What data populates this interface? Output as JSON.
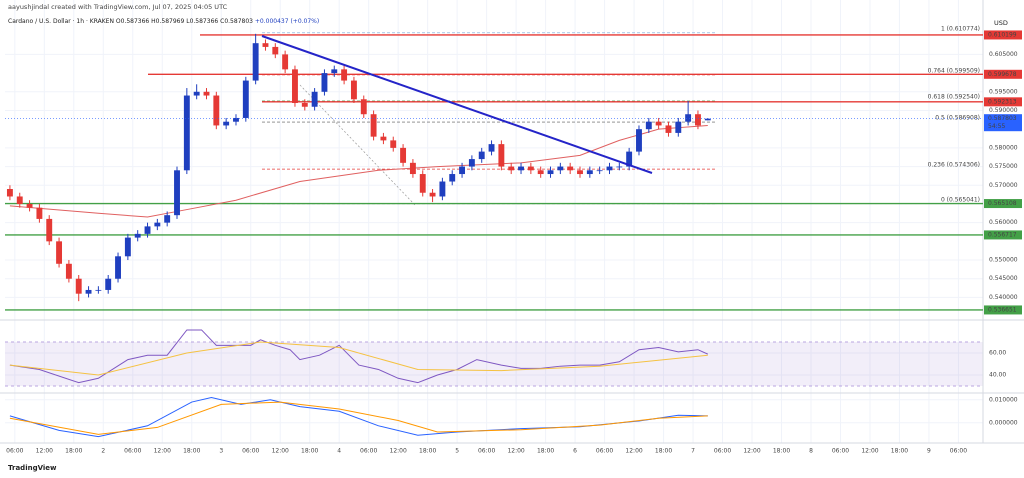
{
  "header": {
    "credit": "aayushjindal created with TradingView.com, Jul 07, 2025 04:05 UTC",
    "symbol": "Cardano / U.S. Dollar · 1h · KRAKEN",
    "open": "O0.587366",
    "high": "H0.587969",
    "low": "L0.587366",
    "close": "C0.587803",
    "change": "+0.000437 (+0.07%)",
    "currency": "USD",
    "countdown": "54:55",
    "logo": "TradingView"
  },
  "chart_data": [
    {
      "type": "candlestick",
      "up_color": "#1f3fbf",
      "down_color": "#e53935",
      "xlim": [
        4,
        203
      ],
      "ylim": [
        0.5353,
        0.6142
      ],
      "x": [
        5,
        7,
        9,
        11,
        13,
        15,
        17,
        19,
        21,
        23,
        25,
        27,
        29,
        31,
        33,
        35,
        37,
        39,
        41,
        43,
        45,
        47,
        49,
        51,
        53,
        55,
        57,
        59,
        61,
        63,
        65,
        67,
        69,
        71,
        73,
        75,
        77,
        79,
        81,
        83,
        85,
        87,
        89,
        91,
        93,
        95,
        97,
        99,
        101,
        103,
        105,
        107,
        109,
        111,
        113,
        115,
        117,
        119,
        121,
        123,
        125,
        127,
        129,
        131,
        133,
        135,
        137,
        139,
        141,
        143,
        145,
        147
      ],
      "open": [
        0.569,
        0.567,
        0.565,
        0.564,
        0.561,
        0.555,
        0.549,
        0.545,
        0.541,
        0.542,
        0.542,
        0.545,
        0.551,
        0.556,
        0.557,
        0.559,
        0.56,
        0.562,
        0.574,
        0.594,
        0.595,
        0.594,
        0.586,
        0.587,
        0.588,
        0.598,
        0.608,
        0.607,
        0.605,
        0.601,
        0.592,
        0.591,
        0.595,
        0.6,
        0.601,
        0.598,
        0.593,
        0.589,
        0.583,
        0.582,
        0.58,
        0.576,
        0.573,
        0.568,
        0.567,
        0.571,
        0.573,
        0.575,
        0.577,
        0.579,
        0.581,
        0.575,
        0.574,
        0.575,
        0.574,
        0.573,
        0.574,
        0.575,
        0.574,
        0.573,
        0.574,
        0.574,
        0.575,
        0.575,
        0.579,
        0.585,
        0.587,
        0.586,
        0.584,
        0.587,
        0.589,
        0.587366
      ],
      "high": [
        0.57,
        0.568,
        0.566,
        0.565,
        0.562,
        0.556,
        0.55,
        0.546,
        0.543,
        0.543,
        0.546,
        0.552,
        0.557,
        0.558,
        0.56,
        0.561,
        0.563,
        0.575,
        0.596,
        0.597,
        0.596,
        0.595,
        0.588,
        0.589,
        0.599,
        0.6105,
        0.609,
        0.608,
        0.606,
        0.602,
        0.593,
        0.596,
        0.601,
        0.602,
        0.602,
        0.599,
        0.594,
        0.59,
        0.584,
        0.583,
        0.581,
        0.577,
        0.574,
        0.569,
        0.572,
        0.574,
        0.576,
        0.578,
        0.58,
        0.582,
        0.582,
        0.576,
        0.576,
        0.576,
        0.575,
        0.575,
        0.576,
        0.576,
        0.575,
        0.575,
        0.575,
        0.576,
        0.576,
        0.58,
        0.586,
        0.588,
        0.588,
        0.587,
        0.588,
        0.5925,
        0.59,
        0.587969
      ],
      "low": [
        0.566,
        0.564,
        0.563,
        0.56,
        0.554,
        0.548,
        0.544,
        0.539,
        0.54,
        0.541,
        0.541,
        0.544,
        0.55,
        0.555,
        0.556,
        0.558,
        0.559,
        0.561,
        0.573,
        0.593,
        0.593,
        0.585,
        0.585,
        0.586,
        0.587,
        0.597,
        0.606,
        0.604,
        0.6,
        0.591,
        0.59,
        0.59,
        0.594,
        0.599,
        0.597,
        0.592,
        0.588,
        0.582,
        0.581,
        0.579,
        0.575,
        0.572,
        0.567,
        0.5655,
        0.566,
        0.57,
        0.572,
        0.574,
        0.576,
        0.578,
        0.574,
        0.573,
        0.573,
        0.573,
        0.572,
        0.572,
        0.573,
        0.573,
        0.572,
        0.572,
        0.573,
        0.573,
        0.574,
        0.574,
        0.578,
        0.584,
        0.585,
        0.583,
        0.583,
        0.586,
        0.585,
        0.587366
      ],
      "close": [
        0.567,
        0.565,
        0.564,
        0.561,
        0.555,
        0.549,
        0.545,
        0.541,
        0.542,
        0.542,
        0.545,
        0.551,
        0.556,
        0.557,
        0.559,
        0.56,
        0.562,
        0.574,
        0.594,
        0.595,
        0.594,
        0.586,
        0.587,
        0.588,
        0.598,
        0.608,
        0.607,
        0.605,
        0.601,
        0.592,
        0.591,
        0.595,
        0.6,
        0.601,
        0.598,
        0.593,
        0.589,
        0.583,
        0.582,
        0.58,
        0.576,
        0.573,
        0.568,
        0.567,
        0.571,
        0.573,
        0.575,
        0.577,
        0.579,
        0.581,
        0.575,
        0.574,
        0.575,
        0.574,
        0.573,
        0.574,
        0.575,
        0.574,
        0.573,
        0.574,
        0.574,
        0.575,
        0.575,
        0.579,
        0.585,
        0.587,
        0.586,
        0.584,
        0.587,
        0.589,
        0.586,
        0.587803
      ],
      "ma": {
        "color": "#e06060",
        "x": [
          5,
          23,
          33,
          39,
          51,
          64,
          80,
          92,
          109,
          121,
          129,
          137,
          147
        ],
        "values": [
          0.5645,
          0.5625,
          0.5615,
          0.563,
          0.566,
          0.571,
          0.574,
          0.575,
          0.576,
          0.578,
          0.582,
          0.585,
          0.586
        ]
      },
      "yticks": [
        {
          "value": 0.54,
          "label": "0.540000"
        },
        {
          "value": 0.545,
          "label": "0.545000"
        },
        {
          "value": 0.55,
          "label": "0.550000"
        },
        {
          "value": 0.56,
          "label": "0.560000"
        },
        {
          "value": 0.57,
          "label": "0.570000"
        },
        {
          "value": 0.575,
          "label": "0.575000"
        },
        {
          "value": 0.58,
          "label": "0.580000"
        },
        {
          "value": 0.59,
          "label": "0.590000"
        },
        {
          "value": 0.595,
          "label": "0.595000"
        },
        {
          "value": 0.605,
          "label": "0.605000"
        }
      ],
      "xticks": [
        {
          "value": 6,
          "label": "06:00"
        },
        {
          "value": 12,
          "label": "12:00"
        },
        {
          "value": 18,
          "label": "18:00"
        },
        {
          "value": 24,
          "label": "2"
        },
        {
          "value": 30,
          "label": "06:00"
        },
        {
          "value": 36,
          "label": "12:00"
        },
        {
          "value": 42,
          "label": "18:00"
        },
        {
          "value": 48,
          "label": "3"
        },
        {
          "value": 54,
          "label": "06:00"
        },
        {
          "value": 60,
          "label": "12:00"
        },
        {
          "value": 66,
          "label": "18:00"
        },
        {
          "value": 72,
          "label": "4"
        },
        {
          "value": 78,
          "label": "06:00"
        },
        {
          "value": 84,
          "label": "12:00"
        },
        {
          "value": 90,
          "label": "18:00"
        },
        {
          "value": 96,
          "label": "5"
        },
        {
          "value": 102,
          "label": "06:00"
        },
        {
          "value": 108,
          "label": "12:00"
        },
        {
          "value": 114,
          "label": "18:00"
        },
        {
          "value": 120,
          "label": "6"
        },
        {
          "value": 126,
          "label": "06:00"
        },
        {
          "value": 132,
          "label": "12:00"
        },
        {
          "value": 138,
          "label": "18:00"
        },
        {
          "value": 144,
          "label": "7"
        },
        {
          "value": 150,
          "label": "06:00"
        },
        {
          "value": 156,
          "label": "12:00"
        },
        {
          "value": 162,
          "label": "18:00"
        },
        {
          "value": 168,
          "label": "8"
        },
        {
          "value": 174,
          "label": "06:00"
        },
        {
          "value": 180,
          "label": "12:00"
        },
        {
          "value": 186,
          "label": "18:00"
        },
        {
          "value": 192,
          "label": "9"
        },
        {
          "value": 198,
          "label": "06:00"
        }
      ],
      "levels": [
        {
          "value": 0.610199,
          "color": "#e53935"
        },
        {
          "value": 0.599678,
          "color": "#e53935"
        },
        {
          "value": 0.592313,
          "color": "#e53935"
        },
        {
          "value": 0.565108,
          "color": "#43a047"
        },
        {
          "value": 0.556717,
          "color": "#43a047"
        },
        {
          "value": 0.536651,
          "color": "#43a047"
        }
      ],
      "last_price": {
        "value": 0.587803,
        "color": "#2962ff"
      },
      "fib": [
        {
          "price": 0.610774,
          "label": "1 (0.610774)",
          "color": "#7aa7d8"
        },
        {
          "price": 0.599509,
          "label": "0.764 (0.599509)",
          "color": "#e53935"
        },
        {
          "price": 0.59254,
          "label": "0.618 (0.592540)",
          "color": "#43a047"
        },
        {
          "price": 0.586908,
          "label": "0.5 (0.586908)",
          "color": "#555555"
        },
        {
          "price": 0.574306,
          "label": "0.236 (0.574306)",
          "color": "#e53935"
        },
        {
          "price": 0.565041,
          "label": "0 (0.565041)",
          "color": "#999999"
        }
      ]
    },
    {
      "type": "line",
      "ylim": [
        24.5,
        85.5
      ],
      "yticks": [
        {
          "value": 60,
          "label": "60.00"
        },
        {
          "value": 40,
          "label": "40.00"
        }
      ],
      "series": [
        {
          "color": "#7e57c2",
          "x": [
            5,
            11,
            19,
            23,
            29,
            33,
            37,
            41,
            44,
            47,
            50,
            54,
            56,
            59,
            62,
            64,
            68,
            72,
            76,
            80,
            84,
            88,
            92,
            96,
            100,
            105,
            109,
            113,
            117,
            121,
            125,
            129,
            133,
            137,
            141,
            145,
            147
          ],
          "values": [
            49,
            45,
            33,
            37,
            54,
            58,
            58,
            81,
            81,
            67,
            67,
            67,
            72,
            67,
            63,
            54,
            58,
            67,
            49,
            45,
            37,
            33,
            40,
            45,
            54,
            49,
            46,
            46,
            48,
            49,
            49,
            52,
            63,
            65,
            61,
            63,
            59
          ]
        },
        {
          "color": "#f5c242",
          "x": [
            5,
            23,
            41,
            56,
            72,
            88,
            105,
            125,
            147
          ],
          "values": [
            49,
            40,
            60,
            70,
            65,
            45,
            44,
            48,
            58
          ]
        }
      ]
    },
    {
      "type": "line",
      "ylim": [
        -0.00833,
        0.0125
      ],
      "yticks": [
        {
          "value": 0.01,
          "label": "0.010000"
        },
        {
          "value": 0,
          "label": "0.000000"
        }
      ],
      "series": [
        {
          "color": "#2962ff",
          "x": [
            5,
            15,
            23,
            33,
            42,
            46,
            52,
            58,
            64,
            72,
            80,
            88,
            96,
            109,
            121,
            133,
            141,
            147
          ],
          "values": [
            0.003,
            -0.0033,
            -0.006,
            -0.0013,
            0.009,
            0.011,
            0.008,
            0.01,
            0.007,
            0.005,
            -0.0013,
            -0.0054,
            -0.004,
            -0.0025,
            -0.0017,
            0.0008,
            0.0033,
            0.003
          ]
        },
        {
          "color": "#ff9800",
          "x": [
            5,
            23,
            35,
            48,
            60,
            72,
            84,
            92,
            109,
            125,
            137,
            147
          ],
          "values": [
            0.002,
            -0.005,
            -0.002,
            0.008,
            0.009,
            0.006,
            0.001,
            -0.004,
            -0.003,
            -0.001,
            0.002,
            0.003
          ]
        }
      ]
    }
  ]
}
